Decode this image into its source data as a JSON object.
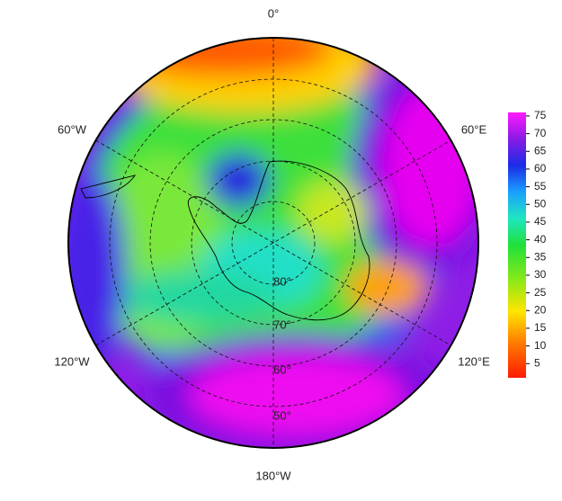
{
  "map": {
    "longitude_labels": [
      "0°",
      "60°W",
      "60°E",
      "120°W",
      "120°E",
      "180°W"
    ],
    "latitude_labels": [
      "80°",
      "70°",
      "60°",
      "50°"
    ],
    "colorbar": {
      "lim": [
        1,
        76
      ],
      "ticks": [
        5,
        10,
        15,
        20,
        25,
        30,
        35,
        40,
        45,
        50,
        55,
        60,
        65,
        70,
        75
      ]
    }
  }
}
